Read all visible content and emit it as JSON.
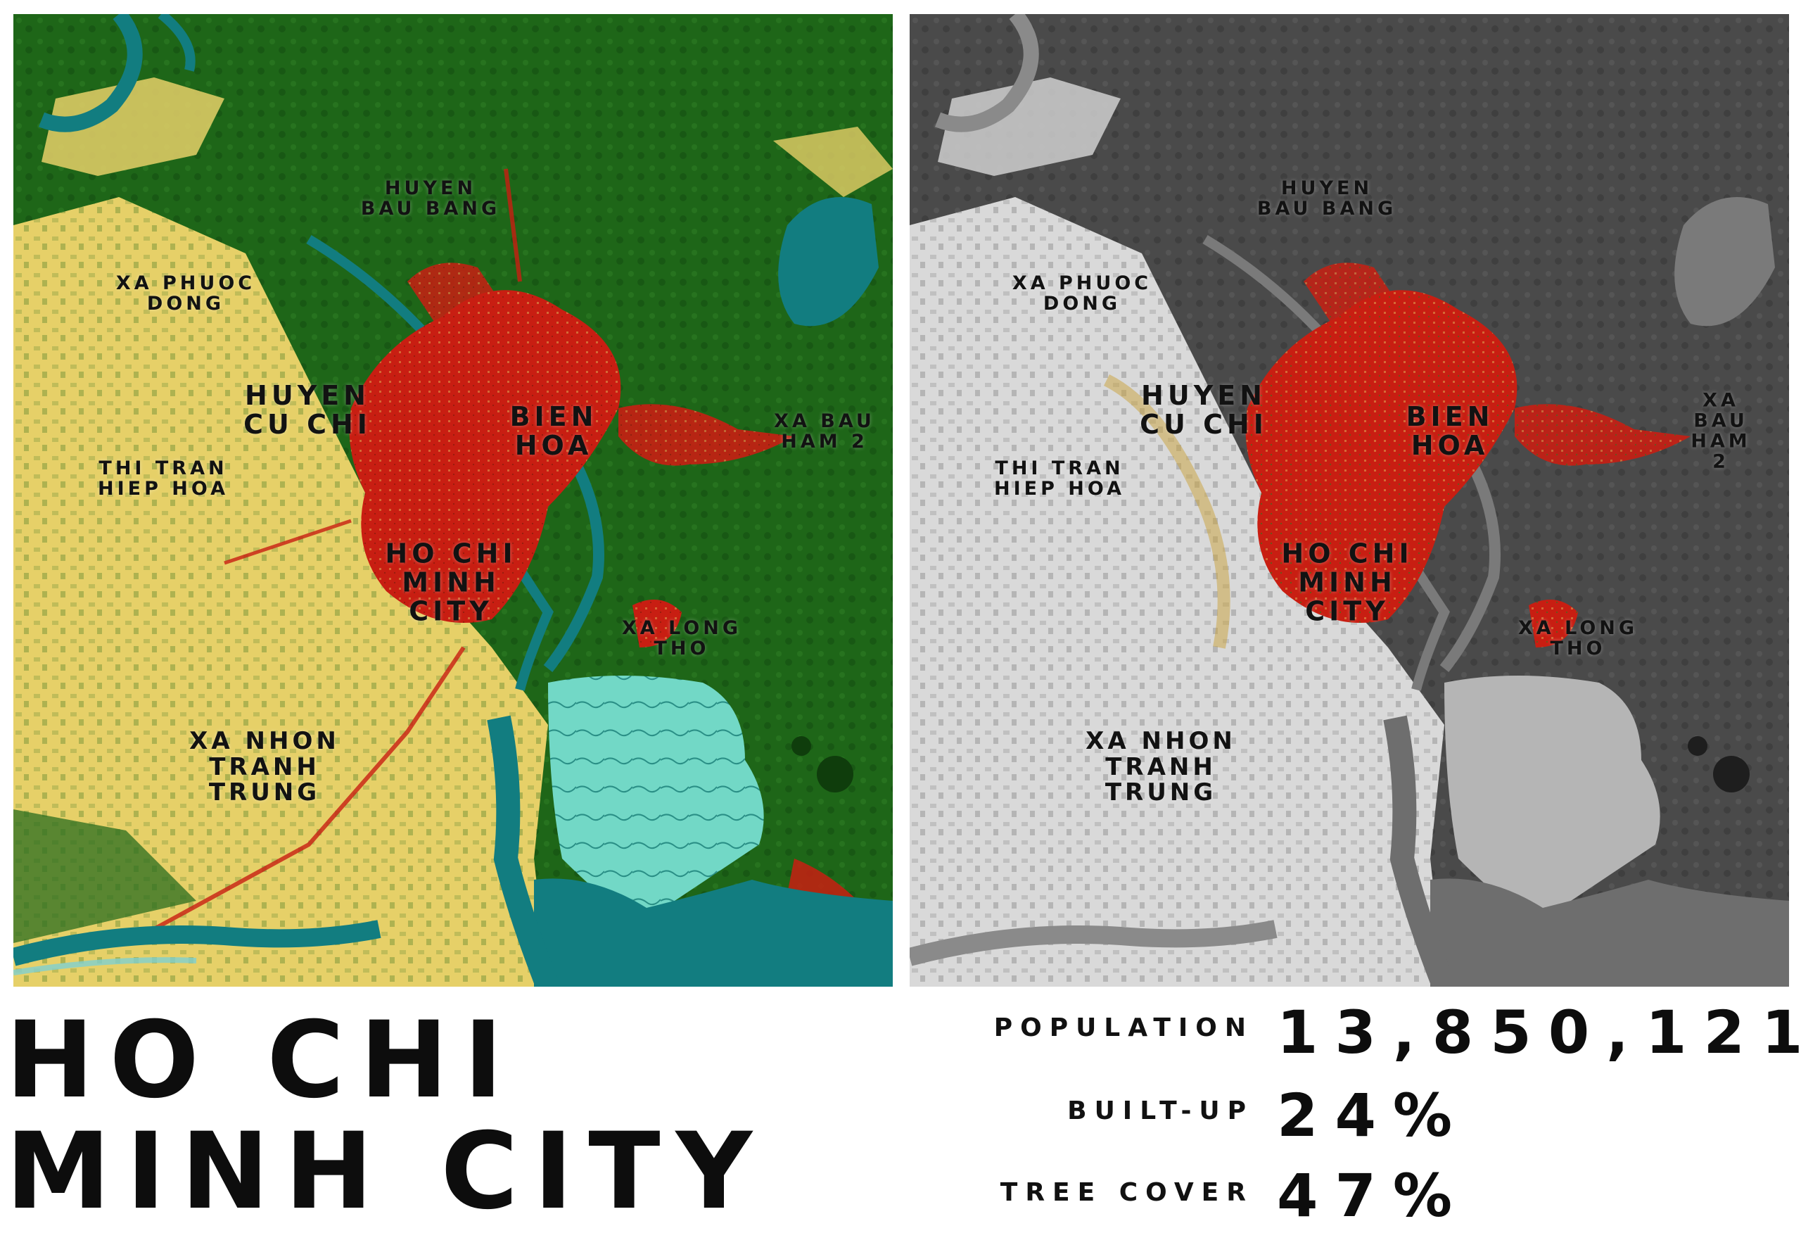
{
  "title": {
    "line1": "HO CHI",
    "line2": "MINH CITY"
  },
  "stats": [
    {
      "label": "POPULATION",
      "value": "13,850,121"
    },
    {
      "label": "BUILT-UP",
      "value": "24%"
    },
    {
      "label": "TREE COVER",
      "value": "47%"
    }
  ],
  "places": [
    {
      "name": "HUYEN\nBAU BANG",
      "size": "small"
    },
    {
      "name": "XA PHUOC\nDONG",
      "size": "small"
    },
    {
      "name": "HUYEN\nCU CHI",
      "size": "large"
    },
    {
      "name": "BIEN\nHOA",
      "size": "large"
    },
    {
      "name": "XA BAU\nHAM 2",
      "size": "small"
    },
    {
      "name": "THI TRAN\nHIEP HOA",
      "size": "small"
    },
    {
      "name": "HO CHI\nMINH\nCITY",
      "size": "large"
    },
    {
      "name": "XA LONG\nTHO",
      "size": "small"
    },
    {
      "name": "XA NHON\nTRANH\nTRUNG",
      "size": "medium"
    }
  ],
  "legend_colors": {
    "tree_cover": "#1f6b1a",
    "cropland": "#e8d36a",
    "built_up": "#c81e12",
    "water": "#127d80",
    "mangrove": "#6fd6c4",
    "gray_base": "#5e5e5e",
    "gray_light": "#d9d9d9"
  }
}
